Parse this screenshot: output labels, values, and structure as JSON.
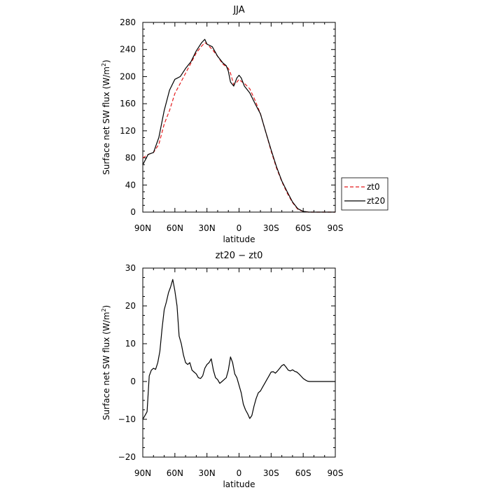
{
  "chart_data": [
    {
      "type": "line",
      "title": "JJA",
      "xlabel": "latitude",
      "ylabel": "Surface net SW flux (W/m",
      "ylabel_sup": "2",
      "ylabel_tail": ")",
      "xlim": [
        90,
        -90
      ],
      "ylim": [
        0,
        280
      ],
      "xticks": [
        90,
        60,
        30,
        0,
        -30,
        -60,
        -90
      ],
      "xtick_labels": [
        "90N",
        "60N",
        "30N",
        "0",
        "30S",
        "60S",
        "90S"
      ],
      "yticks": [
        0,
        40,
        80,
        120,
        160,
        200,
        240,
        280
      ],
      "ytick_labels": [
        "0",
        "40",
        "80",
        "120",
        "160",
        "200",
        "240",
        "280"
      ],
      "legend_position": "outside-right",
      "series": [
        {
          "name": "zt0",
          "color": "#e41a1c",
          "dash": true,
          "x": [
            90,
            85,
            80,
            75,
            70,
            65,
            60,
            55,
            50,
            45,
            40,
            35,
            32,
            30,
            25,
            20,
            15,
            12,
            10,
            8,
            5,
            2,
            0,
            -2,
            -5,
            -10,
            -15,
            -20,
            -25,
            -30,
            -35,
            -40,
            -45,
            -50,
            -55,
            -60,
            -65,
            -70,
            -75,
            -80,
            -85,
            -90
          ],
          "y": [
            80,
            85,
            88,
            100,
            130,
            150,
            175,
            190,
            205,
            220,
            235,
            245,
            250,
            248,
            240,
            230,
            218,
            215,
            212,
            205,
            188,
            192,
            196,
            193,
            190,
            182,
            165,
            145,
            118,
            90,
            65,
            45,
            28,
            14,
            4,
            1,
            0,
            0,
            0,
            0,
            0,
            0
          ]
        },
        {
          "name": "zt20",
          "color": "#000000",
          "dash": false,
          "x": [
            90,
            85,
            80,
            75,
            70,
            65,
            60,
            55,
            50,
            45,
            40,
            35,
            32,
            30,
            25,
            20,
            15,
            12,
            10,
            8,
            5,
            2,
            0,
            -2,
            -5,
            -10,
            -15,
            -20,
            -25,
            -30,
            -35,
            -40,
            -45,
            -50,
            -55,
            -60,
            -65,
            -70,
            -75,
            -80,
            -85,
            -90
          ],
          "y": [
            70,
            85,
            88,
            110,
            150,
            180,
            196,
            200,
            212,
            222,
            238,
            250,
            255,
            248,
            244,
            230,
            220,
            216,
            208,
            192,
            186,
            198,
            202,
            198,
            186,
            176,
            160,
            145,
            118,
            92,
            67,
            46,
            30,
            15,
            5,
            1,
            0,
            0,
            0,
            0,
            0,
            0
          ]
        }
      ]
    },
    {
      "type": "line",
      "title": "zt20 − zt0",
      "xlabel": "latitude",
      "ylabel": "Surface net SW flux (W/m",
      "ylabel_sup": "2",
      "ylabel_tail": ")",
      "xlim": [
        90,
        -90
      ],
      "ylim": [
        -20,
        30
      ],
      "xticks": [
        90,
        60,
        30,
        0,
        -30,
        -60,
        -90
      ],
      "xtick_labels": [
        "90N",
        "60N",
        "30N",
        "0",
        "30S",
        "60S",
        "90S"
      ],
      "yticks": [
        -20,
        -10,
        0,
        10,
        20,
        30
      ],
      "ytick_labels": [
        "−20",
        "−10",
        "0",
        "10",
        "20",
        "30"
      ],
      "series": [
        {
          "name": "zt20 - zt0",
          "color": "#000000",
          "dash": false,
          "x": [
            90,
            88,
            86,
            84,
            82,
            80,
            78,
            76,
            74,
            72,
            70,
            68,
            66,
            64,
            62,
            60,
            58,
            56,
            54,
            52,
            50,
            48,
            46,
            44,
            42,
            40,
            38,
            36,
            34,
            32,
            30,
            28,
            26,
            24,
            22,
            20,
            18,
            16,
            14,
            12,
            10,
            8,
            6,
            4,
            2,
            0,
            -2,
            -4,
            -6,
            -8,
            -10,
            -12,
            -14,
            -16,
            -18,
            -20,
            -22,
            -24,
            -26,
            -28,
            -30,
            -32,
            -34,
            -36,
            -38,
            -40,
            -42,
            -44,
            -46,
            -48,
            -50,
            -52,
            -54,
            -56,
            -58,
            -60,
            -62,
            -64,
            -66,
            -70,
            -75,
            -80,
            -85,
            -90
          ],
          "y": [
            -10,
            -9,
            -8,
            1.5,
            3,
            3.5,
            3.2,
            5,
            8,
            14,
            19,
            21,
            23.5,
            25,
            27,
            24,
            20,
            12,
            10,
            7,
            5,
            4.5,
            5,
            3,
            2.5,
            2,
            1,
            0.8,
            1.5,
            3.5,
            4.5,
            5,
            6,
            3,
            1,
            0.5,
            -0.5,
            0,
            0.5,
            1,
            3,
            6.5,
            5,
            2,
            1,
            -1,
            -3,
            -6,
            -7.5,
            -8.5,
            -9.8,
            -9,
            -6.5,
            -4.5,
            -3,
            -2.5,
            -1.5,
            -0.5,
            0.5,
            1.5,
            2.5,
            2.6,
            2.2,
            2.8,
            3.5,
            4.2,
            4.5,
            3.8,
            3,
            2.8,
            3.1,
            2.7,
            2.5,
            2,
            1.4,
            0.8,
            0.4,
            0.1,
            0,
            0,
            0,
            0,
            0,
            0
          ]
        }
      ]
    }
  ]
}
